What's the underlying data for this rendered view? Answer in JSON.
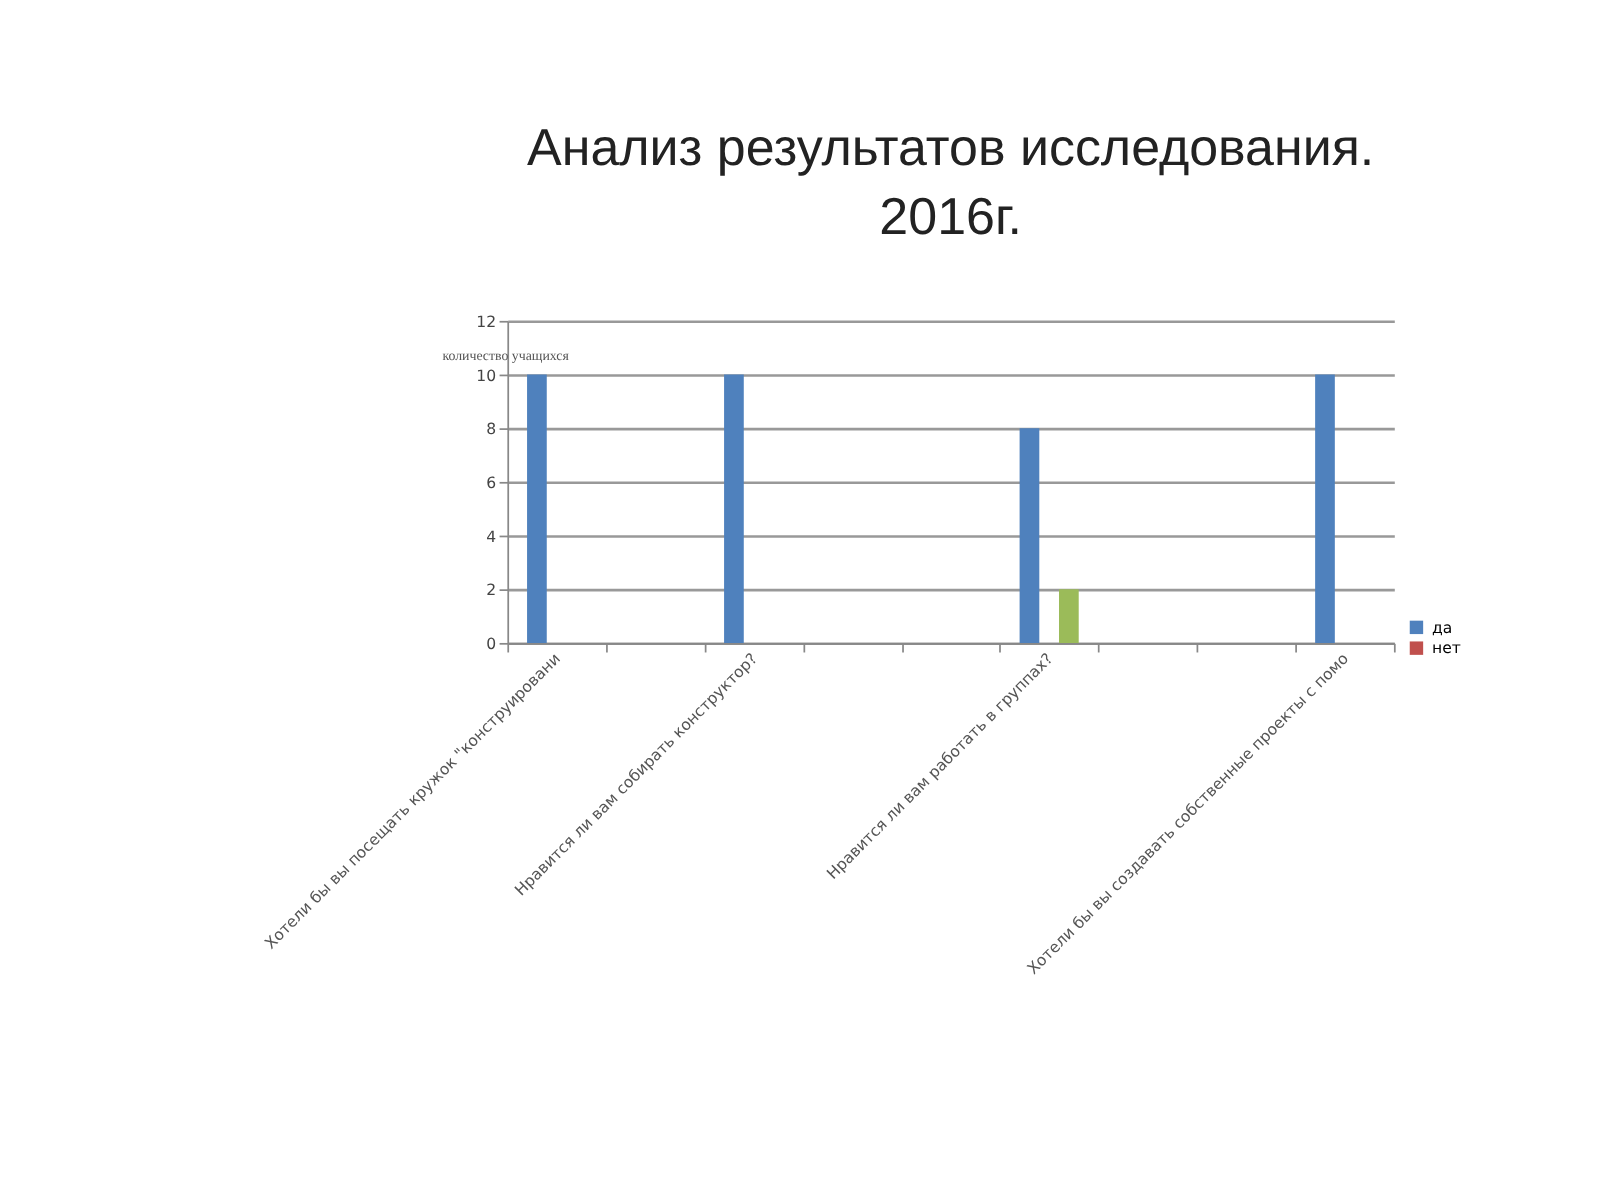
{
  "chart_data": {
    "type": "bar",
    "title": "Анализ результатов исследования. 2016г.",
    "ylabel": "количество учащихся",
    "categories": [
      "Хотели бы вы посещать кружок \"конструировани",
      null,
      "Нравится ли вам собирать конструктор?",
      null,
      null,
      "Нравится ли вам работать в группах?",
      null,
      null,
      "Хотели бы вы создавать собственные проекты с помо"
    ],
    "series": [
      {
        "name": "да",
        "color": "#4f81bd",
        "values": [
          10,
          null,
          10,
          null,
          null,
          8,
          null,
          null,
          10
        ]
      },
      {
        "name": "нет",
        "color": "#c0504d",
        "values": [
          null,
          null,
          null,
          null,
          null,
          null,
          null,
          null,
          null
        ]
      },
      {
        "color": "#9bbb59",
        "values": [
          null,
          null,
          null,
          null,
          null,
          2,
          null,
          null,
          null
        ]
      }
    ],
    "ylim": [
      0,
      12
    ],
    "yticks": [
      0,
      2,
      4,
      6,
      8,
      10,
      12
    ],
    "grid": "y",
    "legend": "right"
  }
}
